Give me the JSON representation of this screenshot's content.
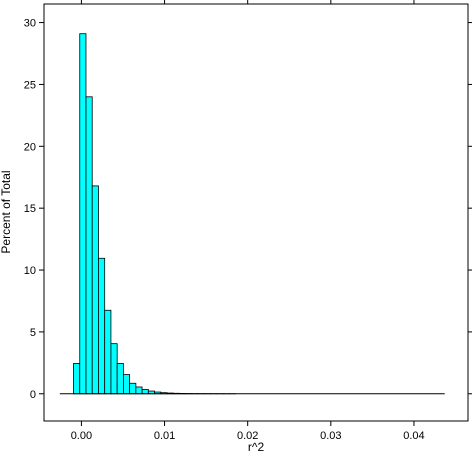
{
  "chart_data": {
    "type": "bar",
    "title": "",
    "xlabel": "r^2",
    "ylabel": "Percent of Total",
    "xlim": [
      -0.0045,
      0.0465
    ],
    "ylim": [
      -2.2,
      31.5
    ],
    "x_ticks": [
      0.0,
      0.01,
      0.02,
      0.03,
      0.04
    ],
    "x_tick_labels": [
      "0.00",
      "0.01",
      "0.02",
      "0.03",
      "0.04"
    ],
    "y_ticks": [
      0,
      5,
      10,
      15,
      20,
      25,
      30
    ],
    "y_tick_labels": [
      "0",
      "5",
      "10",
      "15",
      "20",
      "25",
      "30"
    ],
    "bin_width": 0.00075,
    "bin_start": -0.00095,
    "values": [
      2.45,
      29.1,
      24.0,
      16.8,
      10.95,
      6.75,
      4.05,
      2.45,
      1.55,
      0.85,
      0.55,
      0.35,
      0.22,
      0.14,
      0.09,
      0.06,
      0.04,
      0.03,
      0.02,
      0.015,
      0.01,
      0.008,
      0.006,
      0.005,
      0.004,
      0.003
    ],
    "baseline_extent": [
      -0.0026,
      0.0437
    ],
    "grid": false,
    "colors": {
      "bar_fill": "#00ffff",
      "bar_stroke": "#000000",
      "axis": "#000000"
    }
  }
}
